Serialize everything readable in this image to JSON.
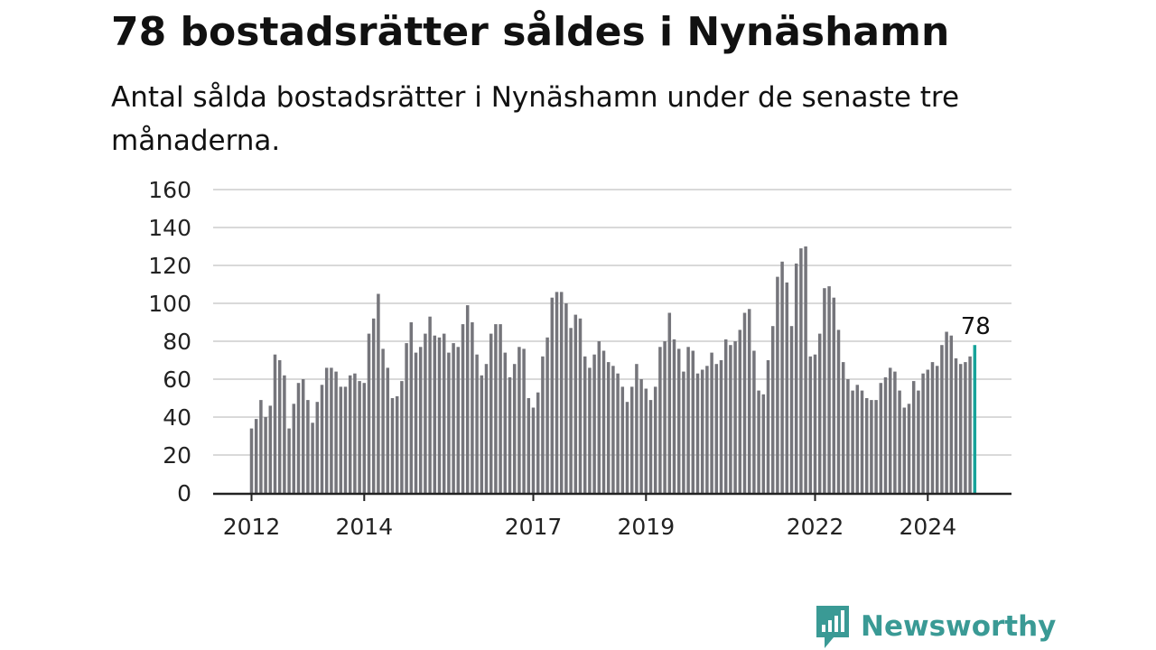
{
  "header": {
    "title": "78 bostadsrätter såldes i Nynäshamn",
    "subtitle": "Antal sålda bostadsrätter i Nynäshamn under de senaste tre månaderna."
  },
  "brand": {
    "name": "Newsworthy",
    "icon": "newsworthy-logo-icon",
    "color": "#3a9a95"
  },
  "colors": {
    "bar": "#75757b",
    "highlight": "#17a39a",
    "grid": "#d9d9d9",
    "axis": "#222222"
  },
  "chart_data": {
    "type": "bar",
    "title": "78 bostadsrätter såldes i Nynäshamn",
    "subtitle": "Antal sålda bostadsrätter i Nynäshamn under de senaste tre månaderna.",
    "xlabel": "",
    "ylabel": "",
    "ylim": [
      0,
      160
    ],
    "yticks": [
      0,
      20,
      40,
      60,
      80,
      100,
      120,
      140,
      160
    ],
    "xticks": [
      "2012",
      "2014",
      "2017",
      "2019",
      "2022",
      "2024"
    ],
    "xtick_index": [
      0,
      24,
      60,
      84,
      120,
      144
    ],
    "grid": "horizontal",
    "legend": "none",
    "period_start": "2012-01",
    "period_step": "month",
    "highlight_label": "78",
    "values": [
      34,
      39,
      49,
      40,
      46,
      73,
      70,
      62,
      34,
      47,
      58,
      60,
      49,
      37,
      48,
      57,
      66,
      66,
      64,
      56,
      56,
      62,
      63,
      59,
      58,
      84,
      92,
      105,
      76,
      66,
      50,
      51,
      59,
      79,
      90,
      74,
      77,
      84,
      93,
      83,
      82,
      84,
      74,
      79,
      77,
      89,
      99,
      90,
      73,
      62,
      68,
      84,
      89,
      89,
      74,
      61,
      68,
      77,
      76,
      50,
      45,
      53,
      72,
      82,
      103,
      106,
      106,
      100,
      87,
      94,
      92,
      72,
      66,
      73,
      80,
      75,
      69,
      67,
      63,
      56,
      48,
      56,
      68,
      60,
      55,
      49,
      56,
      77,
      80,
      95,
      81,
      76,
      64,
      77,
      75,
      63,
      65,
      67,
      74,
      68,
      70,
      81,
      78,
      80,
      86,
      95,
      97,
      75,
      54,
      52,
      70,
      88,
      114,
      122,
      111,
      88,
      121,
      129,
      130,
      72,
      73,
      84,
      108,
      109,
      103,
      86,
      69,
      60,
      54,
      57,
      54,
      50,
      49,
      49,
      58,
      61,
      66,
      64,
      54,
      45,
      47,
      59,
      54,
      63,
      65,
      69,
      67,
      78,
      85,
      83,
      71,
      68,
      69,
      72,
      78
    ]
  }
}
